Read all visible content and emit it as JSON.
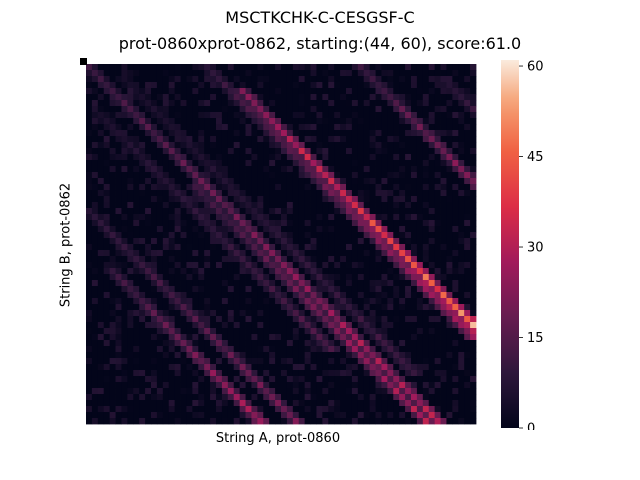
{
  "chart_data": {
    "type": "heatmap",
    "title": "MSCTKCHK-C-CESGSF-C",
    "subtitle": "prot-0860xprot-0862, starting:(44, 60), score:61.0",
    "xlabel": "String A, prot-0860",
    "ylabel": "String B, prot-0862",
    "n_cols": 66,
    "n_rows": 60,
    "colorbar": {
      "min": 0,
      "max": 61,
      "ticks": [
        0,
        15,
        30,
        45,
        60
      ],
      "colormap": "rocket"
    },
    "start_cell": [
      0,
      0
    ],
    "diagonal_bands": [
      {
        "col_start": 26,
        "row_start": 4,
        "length": 58,
        "peak": 61
      },
      {
        "col_start": 0,
        "row_start": 0,
        "length": 60,
        "peak": 30
      },
      {
        "col_start": 20,
        "row_start": 0,
        "length": 46,
        "peak": 26
      },
      {
        "col_start": 46,
        "row_start": 0,
        "length": 26,
        "peak": 28
      },
      {
        "col_start": 18,
        "row_start": 20,
        "length": 40,
        "peak": 28
      },
      {
        "col_start": 4,
        "row_start": 34,
        "length": 28,
        "peak": 28
      },
      {
        "col_start": 0,
        "row_start": 24,
        "length": 36,
        "peak": 20
      },
      {
        "col_start": 60,
        "row_start": 2,
        "length": 20,
        "peak": 18
      },
      {
        "col_start": 2,
        "row_start": 8,
        "length": 40,
        "peak": 14
      },
      {
        "col_start": 6,
        "row_start": 2,
        "length": 50,
        "peak": 12
      }
    ]
  }
}
